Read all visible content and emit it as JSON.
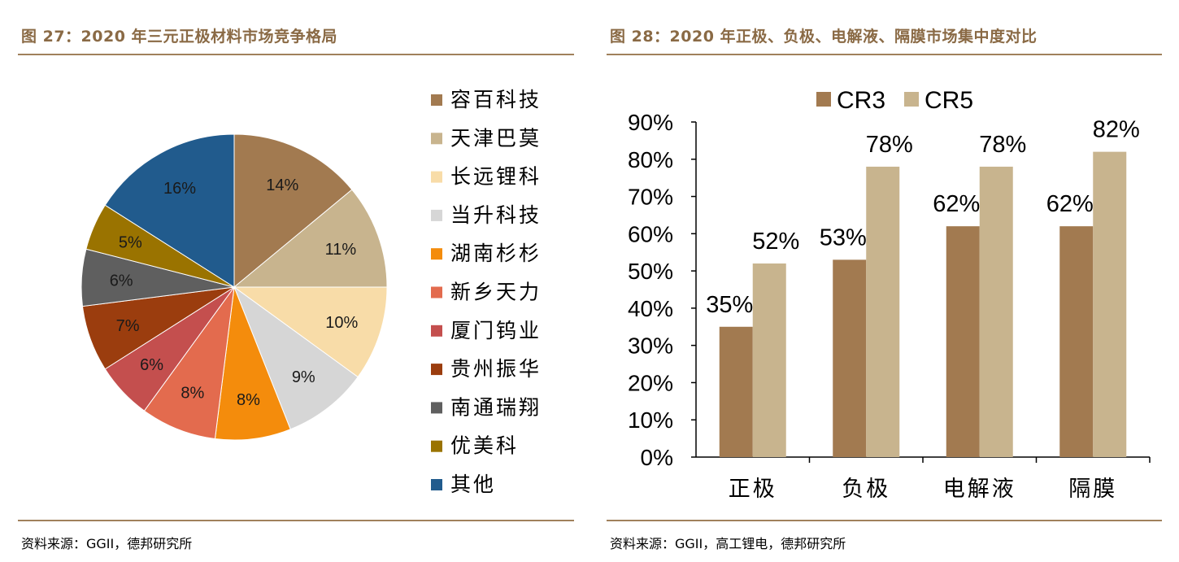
{
  "left": {
    "title": "图 27：2020 年三元正极材料市场竞争格局",
    "source": "资料来源：GGII，德邦研究所"
  },
  "right": {
    "title": "图 28：2020 年正极、负极、电解液、隔膜市场集中度对比",
    "source": "资料来源：GGII，高工锂电，德邦研究所"
  },
  "chart_data": [
    {
      "type": "pie",
      "title": "",
      "legend_position": "right",
      "slices": [
        {
          "label": "容百科技",
          "value": 14,
          "display": "14%",
          "color": "#a27a50"
        },
        {
          "label": "天津巴莫",
          "value": 11,
          "display": "11%",
          "color": "#c8b48e"
        },
        {
          "label": "长远锂科",
          "value": 10,
          "display": "10%",
          "color": "#f8dca8"
        },
        {
          "label": "当升科技",
          "value": 9,
          "display": "9%",
          "color": "#d6d6d6"
        },
        {
          "label": "湖南杉杉",
          "value": 8,
          "display": "8%",
          "color": "#f48c0c"
        },
        {
          "label": "新乡天力",
          "value": 8,
          "display": "8%",
          "color": "#e36b4e"
        },
        {
          "label": "厦门钨业",
          "value": 6,
          "display": "6%",
          "color": "#c44f4e"
        },
        {
          "label": "贵州振华",
          "value": 7,
          "display": "7%",
          "color": "#9b3d0e"
        },
        {
          "label": "南通瑞翔",
          "value": 6,
          "display": "6%",
          "color": "#5f5f5f"
        },
        {
          "label": "优美科",
          "value": 5,
          "display": "5%",
          "color": "#9a7300"
        },
        {
          "label": "其他",
          "value": 16,
          "display": "16%",
          "color": "#215b8d"
        }
      ]
    },
    {
      "type": "bar",
      "title": "",
      "xlabel": "",
      "ylabel": "",
      "categories": [
        "正极",
        "负极",
        "电解液",
        "隔膜"
      ],
      "ylim": [
        0,
        90
      ],
      "yticks": [
        "0%",
        "10%",
        "20%",
        "30%",
        "40%",
        "50%",
        "60%",
        "70%",
        "80%",
        "90%"
      ],
      "grid": false,
      "legend_position": "top",
      "series": [
        {
          "name": "CR3",
          "color": "#a27a50",
          "values": [
            35,
            53,
            62,
            62
          ],
          "labels": [
            "35%",
            "53%",
            "62%",
            "62%"
          ]
        },
        {
          "name": "CR5",
          "color": "#c8b48e",
          "values": [
            52,
            78,
            78,
            82
          ],
          "labels": [
            "52%",
            "78%",
            "78%",
            "82%"
          ]
        }
      ]
    }
  ]
}
